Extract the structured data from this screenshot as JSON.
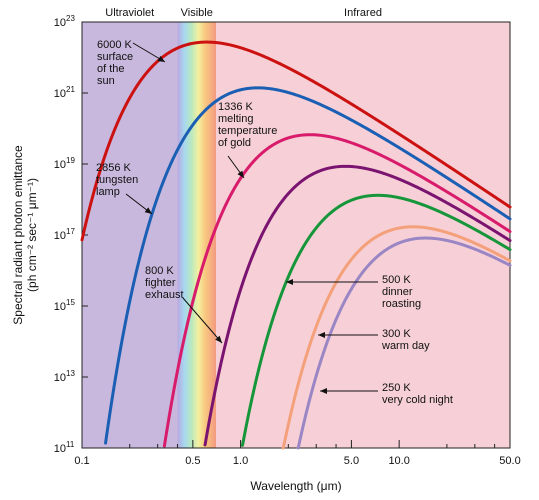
{
  "chart_data": {
    "type": "line",
    "xlabel": "Wavelength (μm)",
    "ylabel_line1": "Spectral radiant photon emittance",
    "ylabel_line2": "(ph cm⁻² sec⁻¹ μm⁻¹)",
    "x_scale": "log",
    "y_scale": "log",
    "xlim": [
      0.1,
      50
    ],
    "ylim": [
      100000000000.0,
      1e+23
    ],
    "x_ticks": [
      {
        "v": 0.1,
        "label": "0.1"
      },
      {
        "v": 0.5,
        "label": "0.5"
      },
      {
        "v": 1.0,
        "label": "1.0"
      },
      {
        "v": 5.0,
        "label": "5.0"
      },
      {
        "v": 10.0,
        "label": "10.0"
      },
      {
        "v": 50.0,
        "label": "50.0"
      }
    ],
    "minor_x_ticks": [
      0.2,
      0.3,
      0.4,
      2,
      3,
      4,
      20,
      30,
      40
    ],
    "y_ticks": [
      {
        "v": 11,
        "label": "10",
        "exp": "11"
      },
      {
        "v": 13,
        "label": "10",
        "exp": "13"
      },
      {
        "v": 15,
        "label": "10",
        "exp": "15"
      },
      {
        "v": 17,
        "label": "10",
        "exp": "17"
      },
      {
        "v": 19,
        "label": "10",
        "exp": "19"
      },
      {
        "v": 21,
        "label": "10",
        "exp": "21"
      },
      {
        "v": 23,
        "label": "10",
        "exp": "23"
      }
    ],
    "regions": [
      {
        "label": "Ultraviolet",
        "from": 0.1,
        "to": 0.4,
        "color": "#c9b8dd"
      },
      {
        "label": "Visible",
        "from": 0.4,
        "to": 0.7,
        "color": "spectrum"
      },
      {
        "label": "Infrared",
        "from": 0.7,
        "to": 50,
        "color": "#f6d0d6"
      }
    ],
    "series": [
      {
        "name": "6000 K surface of the sun",
        "temperature_k": 6000,
        "color": "#cc1111"
      },
      {
        "name": "2856 K tungsten lamp",
        "temperature_k": 2856,
        "color": "#1a5fb4"
      },
      {
        "name": "1336 K melting temperature of gold",
        "temperature_k": 1336,
        "color": "#d81b6a"
      },
      {
        "name": "800 K fighter exhaust",
        "temperature_k": 800,
        "color": "#7a1470"
      },
      {
        "name": "500 K dinner roasting",
        "temperature_k": 500,
        "color": "#16963a"
      },
      {
        "name": "300 K warm day",
        "temperature_k": 300,
        "color": "#f4a07a"
      },
      {
        "name": "250 K very cold night",
        "temperature_k": 250,
        "color": "#9a86c4"
      }
    ],
    "annotations": [
      {
        "lines": [
          "6000 K",
          "surface",
          "of the",
          "sun"
        ],
        "series": 0
      },
      {
        "lines": [
          "2856 K",
          "tungsten",
          "lamp"
        ],
        "series": 1
      },
      {
        "lines": [
          "1336 K",
          "melting",
          "temperature",
          "of gold"
        ],
        "series": 2
      },
      {
        "lines": [
          "800 K",
          "fighter",
          "exhaust"
        ],
        "series": 3
      },
      {
        "lines": [
          "500 K",
          "dinner",
          "roasting"
        ],
        "series": 4
      },
      {
        "lines": [
          "300 K",
          "warm day"
        ],
        "series": 5
      },
      {
        "lines": [
          "250 K",
          "very cold night"
        ],
        "series": 6
      }
    ]
  }
}
